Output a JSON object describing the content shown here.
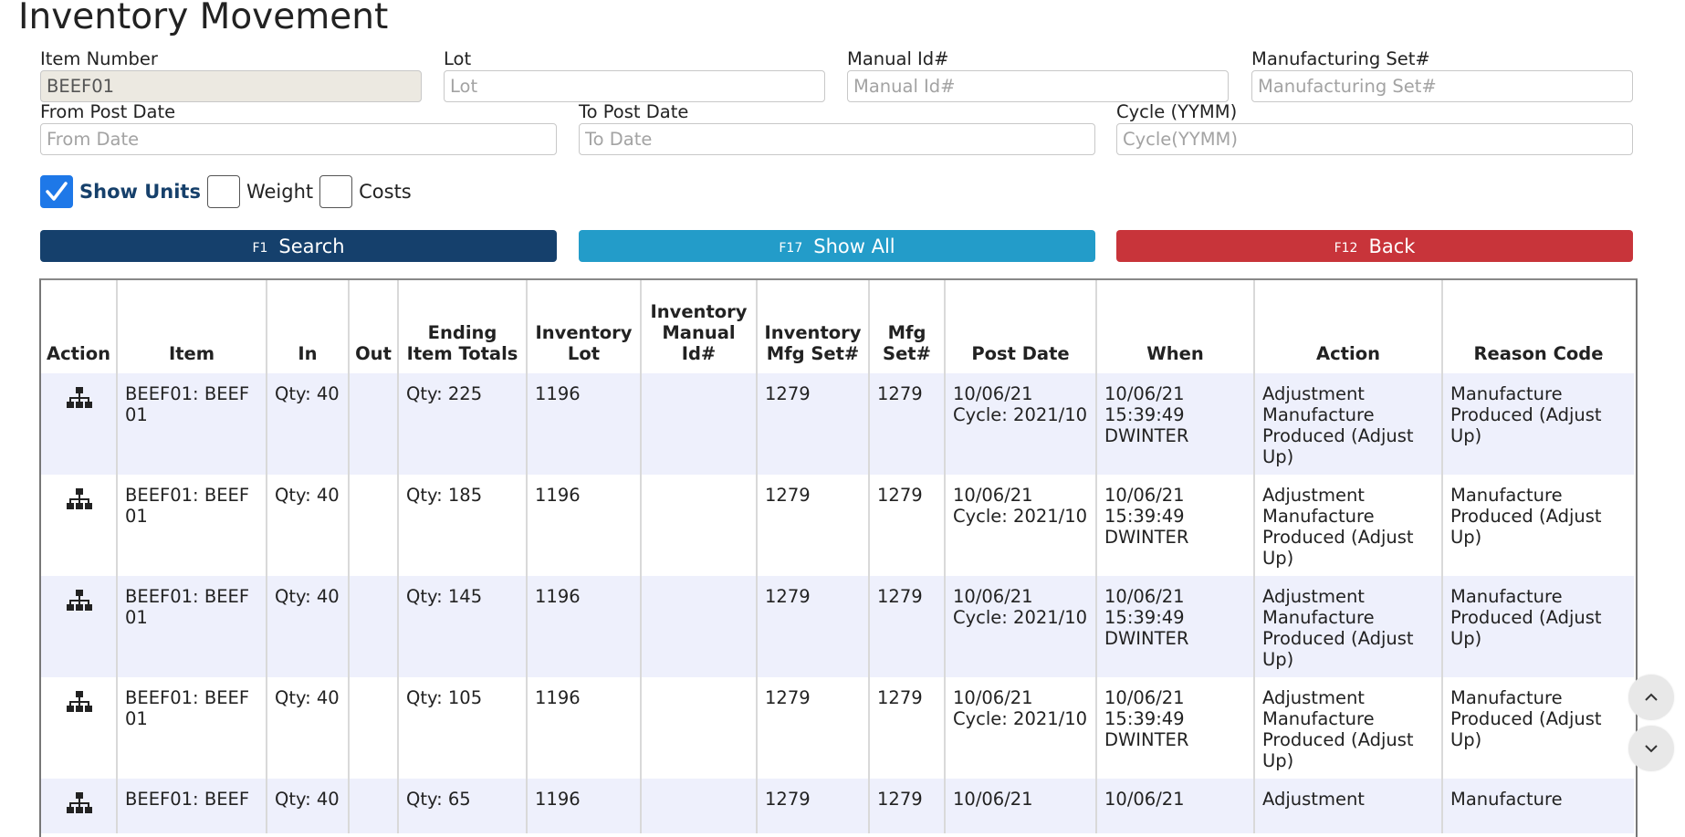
{
  "page": {
    "title": "Inventory Movement"
  },
  "filters": {
    "item_number": {
      "label": "Item Number",
      "value": "BEEF01"
    },
    "lot": {
      "label": "Lot",
      "placeholder": "Lot"
    },
    "manual_id": {
      "label": "Manual Id#",
      "placeholder": "Manual Id#"
    },
    "mfg_set": {
      "label": "Manufacturing Set#",
      "placeholder": "Manufacturing Set#"
    },
    "from_post_date": {
      "label": "From Post Date",
      "placeholder": "From Date"
    },
    "to_post_date": {
      "label": "To Post Date",
      "placeholder": "To Date"
    },
    "cycle": {
      "label": "Cycle (YYMM)",
      "placeholder": "Cycle(YYMM)"
    }
  },
  "toggles": {
    "show_units": {
      "label": "Show Units",
      "checked": true
    },
    "weight": {
      "label": "Weight",
      "checked": false
    },
    "costs": {
      "label": "Costs",
      "checked": false
    }
  },
  "buttons": {
    "search": {
      "key": "F1",
      "label": "Search",
      "color": "#15406c"
    },
    "show_all": {
      "key": "F17",
      "label": "Show All",
      "color": "#239cc9"
    },
    "back": {
      "key": "F12",
      "label": "Back",
      "color": "#c8343a"
    }
  },
  "table": {
    "headers": [
      "Action",
      "Item",
      "In",
      "Out",
      "Ending Item Totals",
      "Inventory Lot",
      "Inventory Manual Id#",
      "Inventory Mfg Set#",
      "Mfg Set#",
      "Post Date",
      "When",
      "Action",
      "Reason Code"
    ],
    "rows": [
      {
        "item": "BEEF01: BEEF 01",
        "in": "Qty: 40",
        "out": "",
        "ending": "Qty: 225",
        "lot": "1196",
        "manual_id": "",
        "inv_mfg_set": "1279",
        "mfg_set": "1279",
        "post_date": "10/06/21",
        "cycle": "Cycle: 2021/10",
        "when_date": "10/06/21",
        "when_time": "15:39:49",
        "when_user": "DWINTER",
        "action": "Adjustment Manufacture Produced (Adjust Up)",
        "reason": "Manufacture Produced (Adjust Up)"
      },
      {
        "item": "BEEF01: BEEF 01",
        "in": "Qty: 40",
        "out": "",
        "ending": "Qty: 185",
        "lot": "1196",
        "manual_id": "",
        "inv_mfg_set": "1279",
        "mfg_set": "1279",
        "post_date": "10/06/21",
        "cycle": "Cycle: 2021/10",
        "when_date": "10/06/21",
        "when_time": "15:39:49",
        "when_user": "DWINTER",
        "action": "Adjustment Manufacture Produced (Adjust Up)",
        "reason": "Manufacture Produced (Adjust Up)"
      },
      {
        "item": "BEEF01: BEEF 01",
        "in": "Qty: 40",
        "out": "",
        "ending": "Qty: 145",
        "lot": "1196",
        "manual_id": "",
        "inv_mfg_set": "1279",
        "mfg_set": "1279",
        "post_date": "10/06/21",
        "cycle": "Cycle: 2021/10",
        "when_date": "10/06/21",
        "when_time": "15:39:49",
        "when_user": "DWINTER",
        "action": "Adjustment Manufacture Produced (Adjust Up)",
        "reason": "Manufacture Produced (Adjust Up)"
      },
      {
        "item": "BEEF01: BEEF 01",
        "in": "Qty: 40",
        "out": "",
        "ending": "Qty: 105",
        "lot": "1196",
        "manual_id": "",
        "inv_mfg_set": "1279",
        "mfg_set": "1279",
        "post_date": "10/06/21",
        "cycle": "Cycle: 2021/10",
        "when_date": "10/06/21",
        "when_time": "15:39:49",
        "when_user": "DWINTER",
        "action": "Adjustment Manufacture Produced (Adjust Up)",
        "reason": "Manufacture Produced (Adjust Up)"
      },
      {
        "item": "BEEF01: BEEF",
        "in": "Qty: 40",
        "out": "",
        "ending": "Qty: 65",
        "lot": "1196",
        "manual_id": "",
        "inv_mfg_set": "1279",
        "mfg_set": "1279",
        "post_date": "10/06/21",
        "cycle": "",
        "when_date": "10/06/21",
        "when_time": "",
        "when_user": "",
        "action": "Adjustment",
        "reason": "Manufacture"
      }
    ]
  },
  "scroll": {
    "up_icon": "chevron-up-icon",
    "down_icon": "chevron-down-icon"
  },
  "icons": {
    "row_action": "hierarchy-icon"
  }
}
